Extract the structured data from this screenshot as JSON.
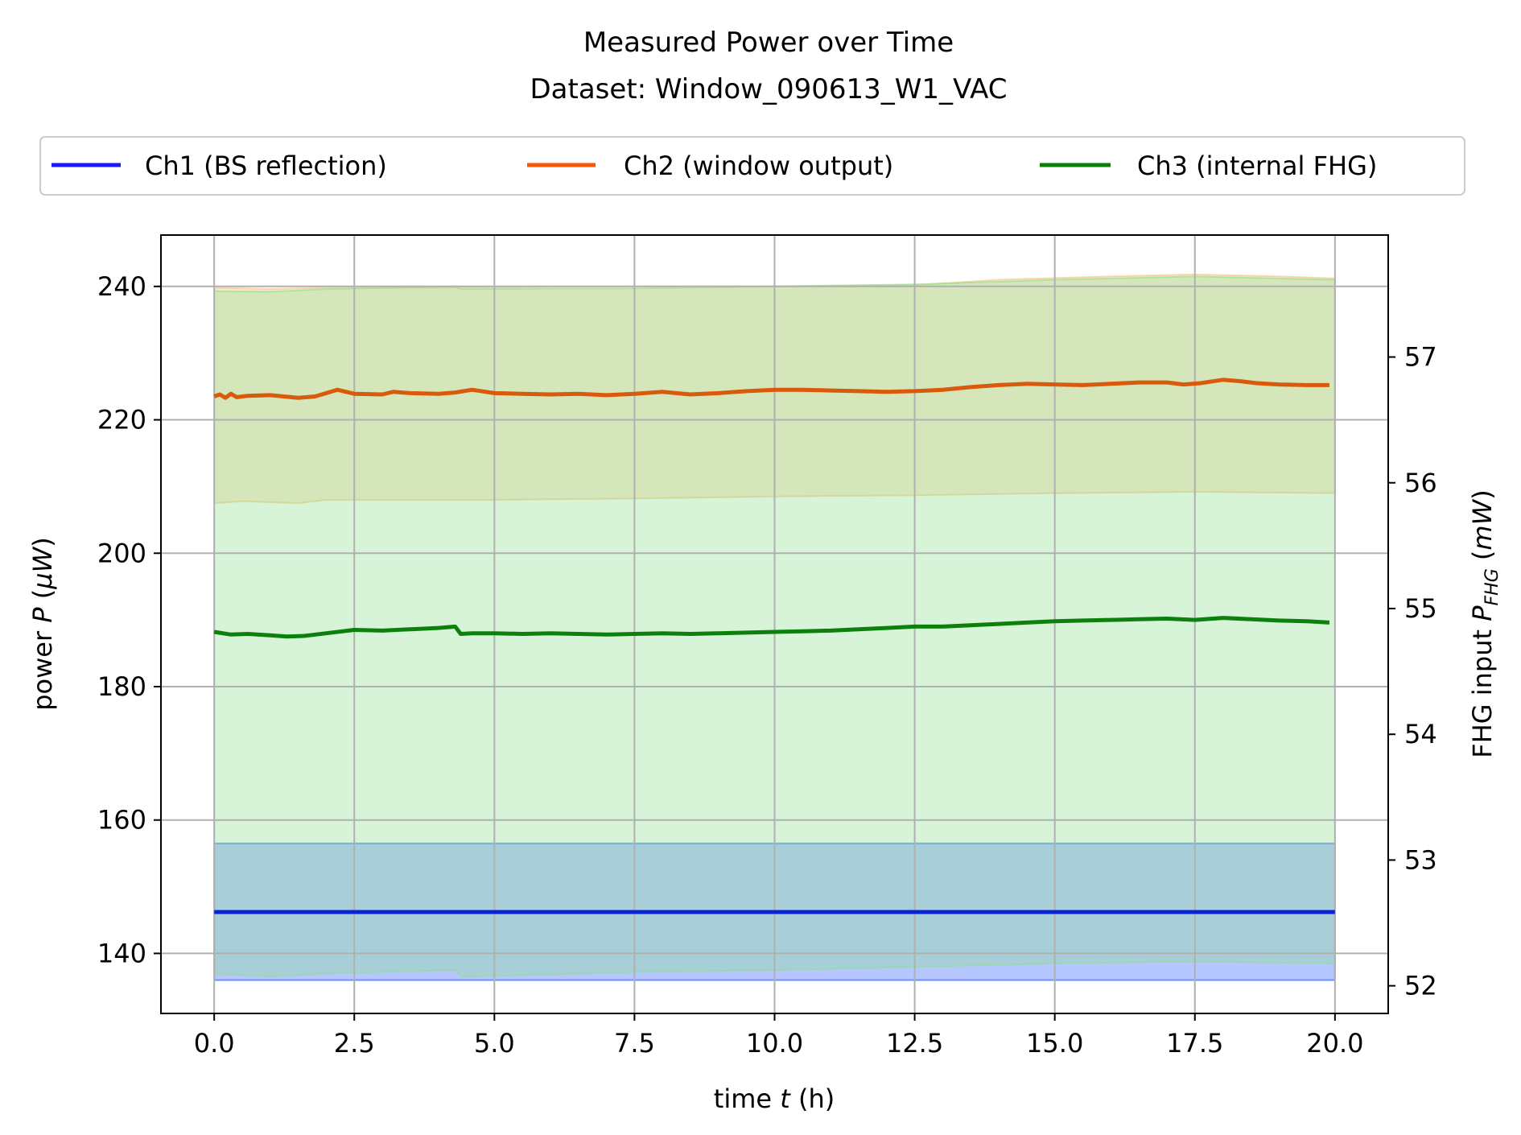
{
  "chart_data": {
    "type": "line",
    "title": "Measured Power over Time",
    "subtitle": "Dataset: Window_090613_W1_VAC",
    "xlabel": {
      "pre": "time ",
      "var": "t",
      "post": " (h)"
    },
    "ylabel_left": {
      "pre": "power ",
      "var": "P",
      "post": " (",
      "unit_var": "μW",
      "end": ")"
    },
    "ylabel_right": {
      "pre": "FHG input ",
      "var": "P",
      "sub": "FHG",
      "post": " (",
      "unit_var": "mW",
      "end": ")"
    },
    "xlim": [
      -0.95,
      20.95
    ],
    "ylim_left": [
      131,
      247.7
    ],
    "ylim_right": [
      51.78,
      57.97
    ],
    "xticks": [
      "0.0",
      "2.5",
      "5.0",
      "7.5",
      "10.0",
      "12.5",
      "15.0",
      "17.5",
      "20.0"
    ],
    "xtick_values": [
      0,
      2.5,
      5,
      7.5,
      10,
      12.5,
      15,
      17.5,
      20
    ],
    "yticks_left": [
      140,
      160,
      180,
      200,
      220,
      240
    ],
    "yticks_right": [
      52,
      53,
      54,
      55,
      56,
      57
    ],
    "grid": true,
    "legend": {
      "placement": "top, above plot",
      "entries": [
        {
          "label": "Ch1 (BS reflection)",
          "color": "#1a1aff"
        },
        {
          "label": "Ch2 (window output)",
          "color": "#ff5500"
        },
        {
          "label": "Ch3 (internal FHG)",
          "color": "#0a800a"
        }
      ]
    },
    "series": [
      {
        "name": "Ch1 (BS reflection)",
        "color": "#0a22d6",
        "band_color": "#2d5cff",
        "axis": "left",
        "x": [
          0,
          20
        ],
        "values": [
          146.2,
          146.2
        ],
        "band_lower": [
          [
            0,
            136
          ],
          [
            20,
            136
          ]
        ],
        "band_upper": [
          [
            0,
            156.5
          ],
          [
            20,
            156.5
          ]
        ]
      },
      {
        "name": "Ch2 (window output)",
        "color": "#d95a0b",
        "band_color": "#f3c27a",
        "axis": "left",
        "x": [
          0,
          0.1,
          0.2,
          0.3,
          0.4,
          0.6,
          1,
          1.5,
          1.8,
          2,
          2.2,
          2.5,
          3,
          3.2,
          3.5,
          4,
          4.3,
          4.6,
          5,
          5.5,
          6,
          6.5,
          7,
          7.5,
          8,
          8.5,
          9,
          9.5,
          10,
          10.5,
          11,
          11.5,
          12,
          12.5,
          13,
          13.5,
          14,
          14.5,
          15,
          15.5,
          16,
          16.5,
          17,
          17.3,
          17.6,
          18,
          18.3,
          18.6,
          19,
          19.5,
          19.9
        ],
        "values": [
          223.5,
          223.8,
          223.3,
          223.9,
          223.4,
          223.6,
          223.7,
          223.3,
          223.5,
          224.0,
          224.5,
          223.9,
          223.8,
          224.2,
          224.0,
          223.9,
          224.1,
          224.5,
          224.0,
          223.9,
          223.8,
          223.9,
          223.7,
          223.9,
          224.2,
          223.8,
          224.0,
          224.3,
          224.5,
          224.5,
          224.4,
          224.3,
          224.2,
          224.3,
          224.5,
          224.9,
          225.2,
          225.4,
          225.3,
          225.2,
          225.4,
          225.6,
          225.6,
          225.3,
          225.5,
          226.0,
          225.8,
          225.5,
          225.3,
          225.2,
          225.2
        ],
        "band_lower": [
          [
            0,
            207.5
          ],
          [
            0.5,
            207.8
          ],
          [
            1.5,
            207.5
          ],
          [
            2,
            208
          ],
          [
            2.5,
            208
          ],
          [
            5,
            208
          ],
          [
            7.5,
            208.2
          ],
          [
            10,
            208.5
          ],
          [
            12.5,
            208.7
          ],
          [
            15,
            209
          ],
          [
            17.5,
            209.2
          ],
          [
            20,
            209
          ]
        ],
        "band_upper": [
          [
            0,
            239.8
          ],
          [
            1,
            239.6
          ],
          [
            2,
            239.8
          ],
          [
            4,
            239.8
          ],
          [
            7.5,
            240
          ],
          [
            10,
            240
          ],
          [
            12.5,
            240.2
          ],
          [
            14,
            241
          ],
          [
            16,
            241.5
          ],
          [
            17.5,
            241.8
          ],
          [
            19,
            241.5
          ],
          [
            20,
            241.2
          ]
        ]
      },
      {
        "name": "Ch3 (internal FHG)",
        "color": "#0d7f0d",
        "band_color": "#8fe08f",
        "axis": "left",
        "x": [
          0,
          0.3,
          0.6,
          1,
          1.3,
          1.6,
          2,
          2.5,
          3,
          3.5,
          4,
          4.3,
          4.4,
          4.6,
          5,
          5.5,
          6,
          6.5,
          7,
          7.5,
          8,
          8.5,
          9,
          9.5,
          10,
          10.5,
          11,
          11.5,
          12,
          12.5,
          13,
          13.5,
          14,
          14.5,
          15,
          15.5,
          16,
          16.5,
          17,
          17.5,
          18,
          18.5,
          19,
          19.5,
          19.9
        ],
        "values": [
          188.2,
          187.8,
          187.9,
          187.7,
          187.5,
          187.6,
          188.0,
          188.5,
          188.4,
          188.6,
          188.8,
          189.0,
          187.9,
          188.0,
          188.0,
          187.9,
          188.0,
          187.9,
          187.8,
          187.9,
          188.0,
          187.9,
          188.0,
          188.1,
          188.2,
          188.3,
          188.4,
          188.6,
          188.8,
          189.0,
          189.0,
          189.2,
          189.4,
          189.6,
          189.8,
          189.9,
          190.0,
          190.1,
          190.2,
          190.0,
          190.3,
          190.1,
          189.9,
          189.8,
          189.6
        ],
        "band_lower": [
          [
            0,
            137
          ],
          [
            1,
            136.5
          ],
          [
            2,
            137
          ],
          [
            4.3,
            137.5
          ],
          [
            4.4,
            136.5
          ],
          [
            7.5,
            137.2
          ],
          [
            10,
            137.5
          ],
          [
            12.5,
            138
          ],
          [
            15,
            138.5
          ],
          [
            17.5,
            138.8
          ],
          [
            20,
            138.5
          ]
        ],
        "band_upper": [
          [
            0,
            239.3
          ],
          [
            1,
            239.2
          ],
          [
            2,
            239.6
          ],
          [
            4.3,
            240
          ],
          [
            4.4,
            239.6
          ],
          [
            7.5,
            239.7
          ],
          [
            10,
            240
          ],
          [
            12.5,
            240.3
          ],
          [
            15,
            241
          ],
          [
            17.5,
            241.5
          ],
          [
            20,
            241
          ]
        ]
      }
    ]
  }
}
